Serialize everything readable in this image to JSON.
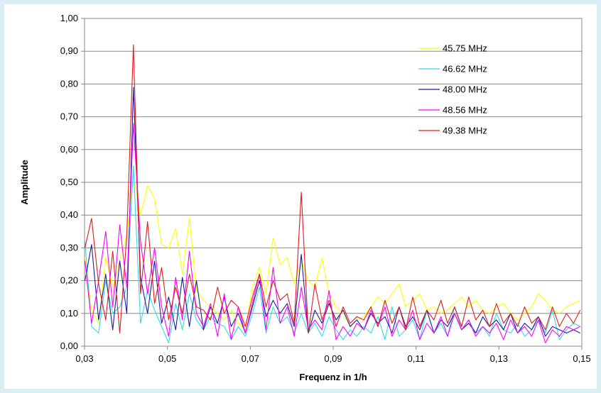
{
  "chart_data": {
    "type": "line",
    "xlabel": "Frequenz in 1/h",
    "ylabel": "Amplitude",
    "xlim": [
      0.03,
      0.15
    ],
    "ylim": [
      0,
      1.0
    ],
    "x_ticks": [
      0.03,
      0.05,
      0.07,
      0.09,
      0.11,
      0.13,
      0.15
    ],
    "x_tick_labels": [
      "0,03",
      "0,05",
      "0,07",
      "0,09",
      "0,11",
      "0,13",
      "0,15"
    ],
    "y_ticks": [
      0,
      0.1,
      0.2,
      0.3,
      0.4,
      0.5,
      0.6,
      0.7,
      0.8,
      0.9,
      1.0
    ],
    "y_tick_labels": [
      "0,00",
      "0,10",
      "0,20",
      "0,30",
      "0,40",
      "0,50",
      "0,60",
      "0,70",
      "0,80",
      "0,90",
      "1,00"
    ],
    "grid": "horizontal",
    "legend_position": "top-right inside",
    "series": [
      {
        "name": "45.75 MHz",
        "color": "#ffff00",
        "x": [
          0.0301,
          0.0317,
          0.0334,
          0.0351,
          0.0368,
          0.0385,
          0.0402,
          0.0418,
          0.0435,
          0.0452,
          0.0469,
          0.0486,
          0.0503,
          0.052,
          0.0536,
          0.0553,
          0.057,
          0.0587,
          0.0604,
          0.0621,
          0.0637,
          0.0654,
          0.0671,
          0.0688,
          0.0705,
          0.0722,
          0.0738,
          0.0755,
          0.0772,
          0.0789,
          0.0806,
          0.0823,
          0.084,
          0.0856,
          0.0873,
          0.089,
          0.0907,
          0.0924,
          0.0941,
          0.0957,
          0.0974,
          0.0991,
          0.1008,
          0.1025,
          0.1042,
          0.1059,
          0.1075,
          0.1092,
          0.1109,
          0.1126,
          0.1143,
          0.116,
          0.1176,
          0.1193,
          0.121,
          0.1227,
          0.1244,
          0.1261,
          0.1277,
          0.1294,
          0.1311,
          0.1328,
          0.1345,
          0.1362,
          0.1379,
          0.1395,
          0.1412,
          0.1429,
          0.1446,
          0.1463,
          0.148,
          0.1496
        ],
        "y": [
          0.27,
          0.11,
          0.07,
          0.27,
          0.18,
          0.26,
          0.34,
          0.52,
          0.4,
          0.49,
          0.45,
          0.31,
          0.3,
          0.36,
          0.22,
          0.39,
          0.17,
          0.14,
          0.12,
          0.1,
          0.08,
          0.11,
          0.07,
          0.05,
          0.18,
          0.24,
          0.16,
          0.33,
          0.25,
          0.27,
          0.19,
          0.26,
          0.2,
          0.18,
          0.27,
          0.16,
          0.12,
          0.1,
          0.06,
          0.08,
          0.09,
          0.12,
          0.15,
          0.13,
          0.16,
          0.19,
          0.12,
          0.14,
          0.16,
          0.11,
          0.12,
          0.1,
          0.11,
          0.13,
          0.15,
          0.12,
          0.14,
          0.11,
          0.1,
          0.12,
          0.13,
          0.1,
          0.08,
          0.1,
          0.12,
          0.16,
          0.14,
          0.11,
          0.1,
          0.12,
          0.13,
          0.14
        ]
      },
      {
        "name": "46.62 MHz",
        "color": "#33d9e8",
        "x": [
          0.0301,
          0.0317,
          0.0334,
          0.0351,
          0.0368,
          0.0385,
          0.0402,
          0.0418,
          0.0435,
          0.0452,
          0.0469,
          0.0486,
          0.0503,
          0.052,
          0.0536,
          0.0553,
          0.057,
          0.0587,
          0.0604,
          0.0621,
          0.0637,
          0.0654,
          0.0671,
          0.0688,
          0.0705,
          0.0722,
          0.0738,
          0.0755,
          0.0772,
          0.0789,
          0.0806,
          0.0823,
          0.084,
          0.0856,
          0.0873,
          0.089,
          0.0907,
          0.0924,
          0.0941,
          0.0957,
          0.0974,
          0.0991,
          0.1008,
          0.1025,
          0.1042,
          0.1059,
          0.1075,
          0.1092,
          0.1109,
          0.1126,
          0.1143,
          0.116,
          0.1176,
          0.1193,
          0.121,
          0.1227,
          0.1244,
          0.1261,
          0.1277,
          0.1294,
          0.1311,
          0.1328,
          0.1345,
          0.1362,
          0.1379,
          0.1395,
          0.1412,
          0.1429,
          0.1446,
          0.1463,
          0.148,
          0.1496
        ],
        "y": [
          0.32,
          0.06,
          0.04,
          0.2,
          0.1,
          0.12,
          0.18,
          0.55,
          0.07,
          0.17,
          0.11,
          0.06,
          0.01,
          0.13,
          0.05,
          0.16,
          0.08,
          0.05,
          0.09,
          0.07,
          0.06,
          0.02,
          0.06,
          0.03,
          0.1,
          0.18,
          0.04,
          0.12,
          0.07,
          0.09,
          0.04,
          0.1,
          0.04,
          0.07,
          0.03,
          0.09,
          0.05,
          0.02,
          0.05,
          0.03,
          0.06,
          0.04,
          0.09,
          0.02,
          0.12,
          0.03,
          0.05,
          0.08,
          0.02,
          0.11,
          0.04,
          0.07,
          0.03,
          0.12,
          0.05,
          0.08,
          0.04,
          0.06,
          0.03,
          0.1,
          0.05,
          0.04,
          0.07,
          0.03,
          0.05,
          0.08,
          0.04,
          0.11,
          0.02,
          0.05,
          0.07,
          0.06
        ]
      },
      {
        "name": "48.00 MHz",
        "color": "#1c1ca0",
        "x": [
          0.0301,
          0.0317,
          0.0334,
          0.0351,
          0.0368,
          0.0385,
          0.0402,
          0.0418,
          0.0435,
          0.0452,
          0.0469,
          0.0486,
          0.0503,
          0.052,
          0.0536,
          0.0553,
          0.057,
          0.0587,
          0.0604,
          0.0621,
          0.0637,
          0.0654,
          0.0671,
          0.0688,
          0.0705,
          0.0722,
          0.0738,
          0.0755,
          0.0772,
          0.0789,
          0.0806,
          0.0823,
          0.084,
          0.0856,
          0.0873,
          0.089,
          0.0907,
          0.0924,
          0.0941,
          0.0957,
          0.0974,
          0.0991,
          0.1008,
          0.1025,
          0.1042,
          0.1059,
          0.1075,
          0.1092,
          0.1109,
          0.1126,
          0.1143,
          0.116,
          0.1176,
          0.1193,
          0.121,
          0.1227,
          0.1244,
          0.1261,
          0.1277,
          0.1294,
          0.1311,
          0.1328,
          0.1345,
          0.1362,
          0.1379,
          0.1395,
          0.1412,
          0.1429,
          0.1446,
          0.1463,
          0.148,
          0.1496
        ],
        "y": [
          0.2,
          0.31,
          0.08,
          0.22,
          0.05,
          0.26,
          0.1,
          0.79,
          0.21,
          0.1,
          0.26,
          0.07,
          0.15,
          0.05,
          0.21,
          0.06,
          0.2,
          0.05,
          0.12,
          0.07,
          0.15,
          0.06,
          0.1,
          0.04,
          0.12,
          0.2,
          0.09,
          0.14,
          0.1,
          0.13,
          0.06,
          0.28,
          0.04,
          0.11,
          0.07,
          0.13,
          0.08,
          0.11,
          0.06,
          0.08,
          0.05,
          0.1,
          0.07,
          0.09,
          0.04,
          0.12,
          0.06,
          0.09,
          0.05,
          0.11,
          0.04,
          0.08,
          0.06,
          0.1,
          0.05,
          0.07,
          0.04,
          0.09,
          0.06,
          0.08,
          0.05,
          0.1,
          0.04,
          0.07,
          0.05,
          0.09,
          0.03,
          0.06,
          0.05,
          0.04,
          0.05,
          0.04
        ]
      },
      {
        "name": "48.56 MHz",
        "color": "#ff00ff",
        "x": [
          0.0301,
          0.0317,
          0.0334,
          0.0351,
          0.0368,
          0.0385,
          0.0402,
          0.0418,
          0.0435,
          0.0452,
          0.0469,
          0.0486,
          0.0503,
          0.052,
          0.0536,
          0.0553,
          0.057,
          0.0587,
          0.0604,
          0.0621,
          0.0637,
          0.0654,
          0.0671,
          0.0688,
          0.0705,
          0.0722,
          0.0738,
          0.0755,
          0.0772,
          0.0789,
          0.0806,
          0.0823,
          0.084,
          0.0856,
          0.0873,
          0.089,
          0.0907,
          0.0924,
          0.0941,
          0.0957,
          0.0974,
          0.0991,
          0.1008,
          0.1025,
          0.1042,
          0.1059,
          0.1075,
          0.1092,
          0.1109,
          0.1126,
          0.1143,
          0.116,
          0.1176,
          0.1193,
          0.121,
          0.1227,
          0.1244,
          0.1261,
          0.1277,
          0.1294,
          0.1311,
          0.1328,
          0.1345,
          0.1362,
          0.1379,
          0.1395,
          0.1412,
          0.1429,
          0.1446,
          0.1463,
          0.148,
          0.1496
        ],
        "y": [
          0.26,
          0.07,
          0.2,
          0.35,
          0.12,
          0.37,
          0.18,
          0.68,
          0.32,
          0.16,
          0.3,
          0.12,
          0.03,
          0.21,
          0.08,
          0.29,
          0.1,
          0.06,
          0.13,
          0.03,
          0.16,
          0.02,
          0.12,
          0.04,
          0.13,
          0.22,
          0.05,
          0.24,
          0.07,
          0.12,
          0.03,
          0.18,
          0.05,
          0.08,
          0.05,
          0.17,
          0.02,
          0.06,
          0.03,
          0.07,
          0.05,
          0.11,
          0.06,
          0.12,
          0.03,
          0.08,
          0.05,
          0.11,
          0.02,
          0.07,
          0.04,
          0.09,
          0.03,
          0.1,
          0.05,
          0.08,
          0.03,
          0.06,
          0.04,
          0.07,
          0.02,
          0.08,
          0.04,
          0.06,
          0.03,
          0.08,
          0.01,
          0.05,
          0.03,
          0.06,
          0.05,
          0.06
        ]
      },
      {
        "name": "49.38 MHz",
        "color": "#e31b1b",
        "x": [
          0.0301,
          0.0317,
          0.0334,
          0.0351,
          0.0368,
          0.0385,
          0.0402,
          0.0418,
          0.0435,
          0.0452,
          0.0469,
          0.0486,
          0.0503,
          0.052,
          0.0536,
          0.0553,
          0.057,
          0.0587,
          0.0604,
          0.0621,
          0.0637,
          0.0654,
          0.0671,
          0.0688,
          0.0705,
          0.0722,
          0.0738,
          0.0755,
          0.0772,
          0.0789,
          0.0806,
          0.0823,
          0.084,
          0.0856,
          0.0873,
          0.089,
          0.0907,
          0.0924,
          0.0941,
          0.0957,
          0.0974,
          0.0991,
          0.1008,
          0.1025,
          0.1042,
          0.1059,
          0.1075,
          0.1092,
          0.1109,
          0.1126,
          0.1143,
          0.116,
          0.1176,
          0.1193,
          0.121,
          0.1227,
          0.1244,
          0.1261,
          0.1277,
          0.1294,
          0.1311,
          0.1328,
          0.1345,
          0.1362,
          0.1379,
          0.1395,
          0.1412,
          0.1429,
          0.1446,
          0.1463,
          0.148,
          0.1496
        ],
        "y": [
          0.3,
          0.39,
          0.19,
          0.08,
          0.29,
          0.04,
          0.34,
          0.92,
          0.16,
          0.38,
          0.13,
          0.24,
          0.08,
          0.18,
          0.1,
          0.22,
          0.12,
          0.11,
          0.08,
          0.18,
          0.1,
          0.14,
          0.12,
          0.06,
          0.15,
          0.22,
          0.12,
          0.2,
          0.14,
          0.16,
          0.07,
          0.47,
          0.04,
          0.19,
          0.08,
          0.14,
          0.06,
          0.12,
          0.07,
          0.09,
          0.08,
          0.12,
          0.06,
          0.14,
          0.07,
          0.12,
          0.05,
          0.15,
          0.06,
          0.11,
          0.08,
          0.14,
          0.07,
          0.12,
          0.06,
          0.15,
          0.08,
          0.11,
          0.06,
          0.13,
          0.07,
          0.1,
          0.06,
          0.12,
          0.07,
          0.09,
          0.05,
          0.12,
          0.06,
          0.1,
          0.07,
          0.11
        ]
      }
    ]
  }
}
